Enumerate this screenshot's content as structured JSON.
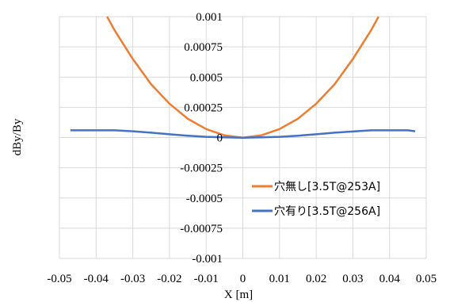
{
  "chart_data": {
    "type": "line",
    "title": "",
    "xlabel": "X [m]",
    "ylabel": "dBy/By",
    "xlim": [
      -0.05,
      0.05
    ],
    "ylim": [
      -0.001,
      0.001
    ],
    "grid": true,
    "legend_position": "lower-right",
    "x_ticks": [
      "-0.05",
      "-0.04",
      "-0.03",
      "-0.02",
      "-0.01",
      "0",
      "0.01",
      "0.02",
      "0.03",
      "0.04",
      "0.05"
    ],
    "y_ticks": [
      "0.001",
      "0.00075",
      "0.0005",
      "0.00025",
      "0",
      "-0.00025",
      "-0.0005",
      "-0.00075",
      "-0.001"
    ],
    "series": [
      {
        "name": "穴無し[3.5T@253A]",
        "color": "#ED7D31",
        "points": [
          [
            -0.037,
            0.001
          ],
          [
            -0.035,
            0.00089
          ],
          [
            -0.03,
            0.00065
          ],
          [
            -0.025,
            0.00044
          ],
          [
            -0.02,
            0.00028
          ],
          [
            -0.015,
            0.000155
          ],
          [
            -0.01,
            7e-05
          ],
          [
            -0.005,
            1.8e-05
          ],
          [
            0,
            -2e-06
          ],
          [
            0.005,
            1.8e-05
          ],
          [
            0.01,
            7e-05
          ],
          [
            0.015,
            0.000155
          ],
          [
            0.02,
            0.00028
          ],
          [
            0.025,
            0.00044
          ],
          [
            0.03,
            0.00065
          ],
          [
            0.035,
            0.00089
          ],
          [
            0.037,
            0.001
          ]
        ]
      },
      {
        "name": "穴有り[3.5T@256A]",
        "color": "#4472C4",
        "points": [
          [
            -0.047,
            6e-05
          ],
          [
            -0.04,
            6e-05
          ],
          [
            -0.035,
            6e-05
          ],
          [
            -0.03,
            5.2e-05
          ],
          [
            -0.025,
            4e-05
          ],
          [
            -0.02,
            2.7e-05
          ],
          [
            -0.015,
            1.5e-05
          ],
          [
            -0.01,
            6e-06
          ],
          [
            -0.005,
            1e-06
          ],
          [
            0,
            -1e-06
          ],
          [
            0.005,
            1e-06
          ],
          [
            0.01,
            6e-06
          ],
          [
            0.015,
            1.5e-05
          ],
          [
            0.02,
            2.7e-05
          ],
          [
            0.025,
            4e-05
          ],
          [
            0.03,
            5e-05
          ],
          [
            0.035,
            6e-05
          ],
          [
            0.04,
            6e-05
          ],
          [
            0.045,
            6e-05
          ],
          [
            0.047,
            5.2e-05
          ]
        ]
      }
    ]
  }
}
